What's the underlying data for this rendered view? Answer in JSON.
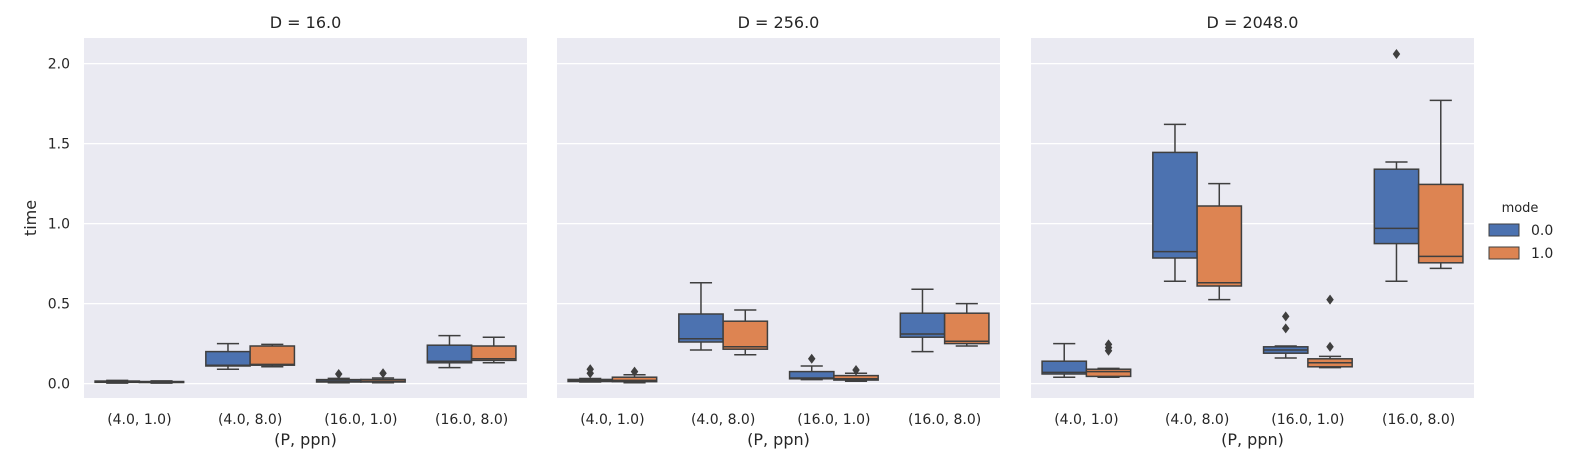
{
  "chart_data": {
    "type": "box",
    "facet_prefix": "D = ",
    "x_label": "(P, ppn)",
    "y_label": "time",
    "categories": [
      "(4.0, 1.0)",
      "(4.0, 8.0)",
      "(16.0, 1.0)",
      "(16.0, 8.0)"
    ],
    "y_ticks": [
      "0.0",
      "0.5",
      "1.0",
      "1.5",
      "2.0"
    ],
    "ylim": [
      -0.09,
      2.16
    ],
    "grid": true,
    "legend": {
      "title": "mode",
      "position": "right",
      "items": [
        {
          "label": "0.0",
          "color": "#4c72b0"
        },
        {
          "label": "1.0",
          "color": "#dd8452"
        }
      ]
    },
    "panels": [
      {
        "title": "D = 16.0",
        "boxes": [
          {
            "category": "(4.0, 1.0)",
            "mode": "0.0",
            "whislo": 0.003,
            "q1": 0.008,
            "med": 0.012,
            "q3": 0.016,
            "whishi": 0.02,
            "fliers": []
          },
          {
            "category": "(4.0, 1.0)",
            "mode": "1.0",
            "whislo": 0.003,
            "q1": 0.007,
            "med": 0.01,
            "q3": 0.013,
            "whishi": 0.017,
            "fliers": []
          },
          {
            "category": "(4.0, 8.0)",
            "mode": "0.0",
            "whislo": 0.09,
            "q1": 0.11,
            "med": 0.115,
            "q3": 0.2,
            "whishi": 0.25,
            "fliers": []
          },
          {
            "category": "(4.0, 8.0)",
            "mode": "1.0",
            "whislo": 0.105,
            "q1": 0.115,
            "med": 0.12,
            "q3": 0.235,
            "whishi": 0.245,
            "fliers": []
          },
          {
            "category": "(16.0, 1.0)",
            "mode": "0.0",
            "whislo": 0.005,
            "q1": 0.01,
            "med": 0.015,
            "q3": 0.025,
            "whishi": 0.033,
            "fliers": [
              0.06
            ]
          },
          {
            "category": "(16.0, 1.0)",
            "mode": "1.0",
            "whislo": 0.005,
            "q1": 0.01,
            "med": 0.015,
            "q3": 0.026,
            "whishi": 0.035,
            "fliers": [
              0.065
            ]
          },
          {
            "category": "(16.0, 8.0)",
            "mode": "0.0",
            "whislo": 0.1,
            "q1": 0.13,
            "med": 0.14,
            "q3": 0.24,
            "whishi": 0.3,
            "fliers": []
          },
          {
            "category": "(16.0, 8.0)",
            "mode": "1.0",
            "whislo": 0.13,
            "q1": 0.145,
            "med": 0.155,
            "q3": 0.235,
            "whishi": 0.29,
            "fliers": []
          }
        ]
      },
      {
        "title": "D = 256.0",
        "boxes": [
          {
            "category": "(4.0, 1.0)",
            "mode": "0.0",
            "whislo": 0.01,
            "q1": 0.013,
            "med": 0.018,
            "q3": 0.026,
            "whishi": 0.032,
            "fliers": [
              0.065,
              0.09
            ]
          },
          {
            "category": "(4.0, 1.0)",
            "mode": "1.0",
            "whislo": 0.005,
            "q1": 0.012,
            "med": 0.02,
            "q3": 0.04,
            "whishi": 0.055,
            "fliers": [
              0.075
            ]
          },
          {
            "category": "(4.0, 8.0)",
            "mode": "0.0",
            "whislo": 0.21,
            "q1": 0.26,
            "med": 0.28,
            "q3": 0.435,
            "whishi": 0.63,
            "fliers": []
          },
          {
            "category": "(4.0, 8.0)",
            "mode": "1.0",
            "whislo": 0.18,
            "q1": 0.215,
            "med": 0.23,
            "q3": 0.39,
            "whishi": 0.46,
            "fliers": []
          },
          {
            "category": "(16.0, 1.0)",
            "mode": "0.0",
            "whislo": 0.025,
            "q1": 0.03,
            "med": 0.035,
            "q3": 0.075,
            "whishi": 0.11,
            "fliers": [
              0.155
            ]
          },
          {
            "category": "(16.0, 1.0)",
            "mode": "1.0",
            "whislo": 0.015,
            "q1": 0.022,
            "med": 0.03,
            "q3": 0.05,
            "whishi": 0.065,
            "fliers": [
              0.085
            ]
          },
          {
            "category": "(16.0, 8.0)",
            "mode": "0.0",
            "whislo": 0.2,
            "q1": 0.29,
            "med": 0.31,
            "q3": 0.44,
            "whishi": 0.59,
            "fliers": []
          },
          {
            "category": "(16.0, 8.0)",
            "mode": "1.0",
            "whislo": 0.235,
            "q1": 0.25,
            "med": 0.265,
            "q3": 0.44,
            "whishi": 0.5,
            "fliers": []
          }
        ]
      },
      {
        "title": "D = 2048.0",
        "boxes": [
          {
            "category": "(4.0, 1.0)",
            "mode": "0.0",
            "whislo": 0.04,
            "q1": 0.06,
            "med": 0.07,
            "q3": 0.14,
            "whishi": 0.25,
            "fliers": []
          },
          {
            "category": "(4.0, 1.0)",
            "mode": "1.0",
            "whislo": 0.04,
            "q1": 0.045,
            "med": 0.075,
            "q3": 0.09,
            "whishi": 0.095,
            "fliers": [
              0.205,
              0.225,
              0.245
            ]
          },
          {
            "category": "(4.0, 8.0)",
            "mode": "0.0",
            "whislo": 0.64,
            "q1": 0.785,
            "med": 0.825,
            "q3": 1.445,
            "whishi": 1.62,
            "fliers": []
          },
          {
            "category": "(4.0, 8.0)",
            "mode": "1.0",
            "whislo": 0.525,
            "q1": 0.61,
            "med": 0.63,
            "q3": 1.11,
            "whishi": 1.25,
            "fliers": []
          },
          {
            "category": "(16.0, 1.0)",
            "mode": "0.0",
            "whislo": 0.16,
            "q1": 0.19,
            "med": 0.21,
            "q3": 0.23,
            "whishi": 0.235,
            "fliers": [
              0.345,
              0.42
            ]
          },
          {
            "category": "(16.0, 1.0)",
            "mode": "1.0",
            "whislo": 0.1,
            "q1": 0.105,
            "med": 0.13,
            "q3": 0.155,
            "whishi": 0.17,
            "fliers": [
              0.23,
              0.525
            ]
          },
          {
            "category": "(16.0, 8.0)",
            "mode": "0.0",
            "whislo": 0.64,
            "q1": 0.875,
            "med": 0.97,
            "q3": 1.34,
            "whishi": 1.385,
            "fliers": [
              2.06
            ]
          },
          {
            "category": "(16.0, 8.0)",
            "mode": "1.0",
            "whislo": 0.72,
            "q1": 0.755,
            "med": 0.795,
            "q3": 1.245,
            "whishi": 1.77,
            "fliers": []
          }
        ]
      }
    ]
  }
}
